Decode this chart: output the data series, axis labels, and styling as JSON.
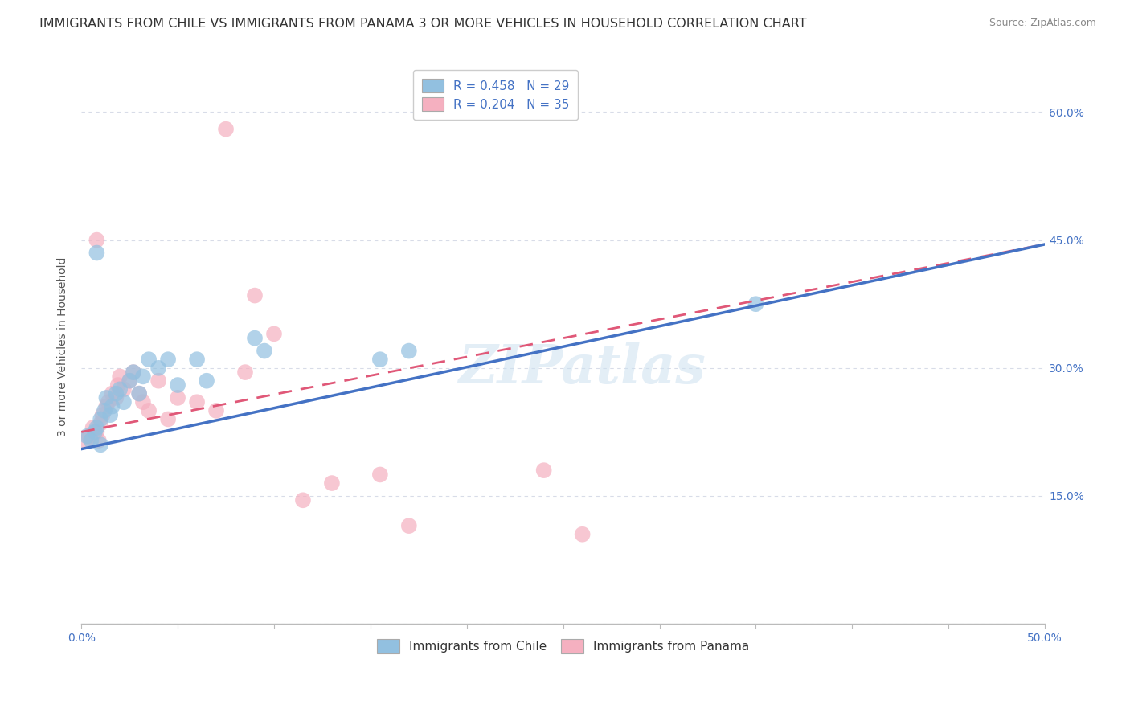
{
  "title": "IMMIGRANTS FROM CHILE VS IMMIGRANTS FROM PANAMA 3 OR MORE VEHICLES IN HOUSEHOLD CORRELATION CHART",
  "source": "Source: ZipAtlas.com",
  "ylabel": "3 or more Vehicles in Household",
  "xlim": [
    0.0,
    0.5
  ],
  "ylim": [
    0.0,
    0.65
  ],
  "xtick_positions": [
    0.0,
    0.05,
    0.1,
    0.15,
    0.2,
    0.25,
    0.3,
    0.35,
    0.4,
    0.45,
    0.5
  ],
  "xtick_labels": [
    "0.0%",
    "",
    "",
    "",
    "",
    "",
    "",
    "",
    "",
    "",
    "50.0%"
  ],
  "ytick_positions": [
    0.0,
    0.15,
    0.3,
    0.45,
    0.6
  ],
  "ytick_labels": [
    "",
    "15.0%",
    "30.0%",
    "45.0%",
    "60.0%"
  ],
  "legend_chile": "R = 0.458   N = 29",
  "legend_panama": "R = 0.204   N = 35",
  "chile_color": "#92c0e0",
  "panama_color": "#f5b0c0",
  "chile_line_color": "#4472c4",
  "panama_line_color": "#e05878",
  "watermark": "ZIPatlas",
  "chile_x": [
    0.003,
    0.005,
    0.007,
    0.008,
    0.01,
    0.01,
    0.012,
    0.013,
    0.015,
    0.016,
    0.018,
    0.02,
    0.022,
    0.025,
    0.027,
    0.03,
    0.032,
    0.035,
    0.04,
    0.045,
    0.05,
    0.06,
    0.065,
    0.09,
    0.095,
    0.155,
    0.17,
    0.35,
    0.008
  ],
  "chile_y": [
    0.22,
    0.215,
    0.225,
    0.23,
    0.21,
    0.24,
    0.25,
    0.265,
    0.245,
    0.255,
    0.27,
    0.275,
    0.26,
    0.285,
    0.295,
    0.27,
    0.29,
    0.31,
    0.3,
    0.31,
    0.28,
    0.31,
    0.285,
    0.335,
    0.32,
    0.31,
    0.32,
    0.375,
    0.435
  ],
  "panama_x": [
    0.002,
    0.004,
    0.006,
    0.008,
    0.009,
    0.01,
    0.011,
    0.013,
    0.014,
    0.016,
    0.018,
    0.019,
    0.02,
    0.022,
    0.025,
    0.027,
    0.03,
    0.032,
    0.035,
    0.04,
    0.045,
    0.05,
    0.06,
    0.07,
    0.075,
    0.085,
    0.09,
    0.1,
    0.115,
    0.13,
    0.155,
    0.17,
    0.24,
    0.008,
    0.26
  ],
  "panama_y": [
    0.215,
    0.22,
    0.23,
    0.225,
    0.215,
    0.235,
    0.245,
    0.255,
    0.26,
    0.27,
    0.265,
    0.28,
    0.29,
    0.275,
    0.285,
    0.295,
    0.27,
    0.26,
    0.25,
    0.285,
    0.24,
    0.265,
    0.26,
    0.25,
    0.58,
    0.295,
    0.385,
    0.34,
    0.145,
    0.165,
    0.175,
    0.115,
    0.18,
    0.45,
    0.105
  ],
  "chile_line_x": [
    0.0,
    0.5
  ],
  "chile_line_y": [
    0.205,
    0.445
  ],
  "panama_line_x": [
    0.0,
    0.5
  ],
  "panama_line_y": [
    0.225,
    0.445
  ],
  "background_color": "#ffffff",
  "grid_color": "#d8dce8",
  "title_fontsize": 11.5,
  "axis_label_fontsize": 10,
  "tick_fontsize": 10,
  "legend_fontsize": 11
}
